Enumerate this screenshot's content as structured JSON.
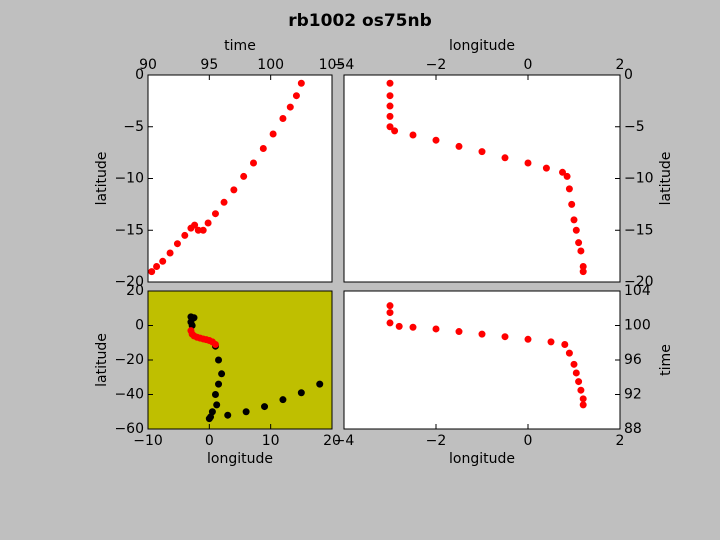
{
  "title": "rb1002 os75nb",
  "chart_data": [
    {
      "type": "scatter",
      "xlabel": "time",
      "ylabel": "latitude",
      "xaxis_position": "top",
      "yaxis_position": "left",
      "facecolor": "#ffffff",
      "xlim": [
        90,
        105
      ],
      "xticks": [
        90,
        95,
        100,
        105
      ],
      "ylim": [
        -20,
        0
      ],
      "yticks": [
        0,
        {
          "value": -5,
          "label": "−5"
        },
        {
          "value": -10,
          "label": "−10"
        },
        {
          "value": -15,
          "label": "−15"
        },
        {
          "value": -20,
          "label": "−20"
        }
      ],
      "series": [
        {
          "color": "#ff0000",
          "x": [
            90.3,
            90.7,
            91.2,
            91.8,
            92.4,
            93.0,
            93.5,
            93.8,
            94.1,
            94.5,
            94.9,
            95.5,
            96.2,
            97.0,
            97.8,
            98.6,
            99.4,
            100.2,
            101.0,
            101.6,
            102.1,
            102.5
          ],
          "values": [
            -19,
            -18.5,
            -18,
            -17.2,
            -16.3,
            -15.5,
            -14.8,
            -14.5,
            -15,
            -15,
            -14.3,
            -13.4,
            -12.3,
            -11.1,
            -9.8,
            -8.5,
            -7.1,
            -5.7,
            -4.2,
            -3.1,
            -2,
            -0.8
          ]
        }
      ]
    },
    {
      "type": "scatter",
      "xlabel": "longitude",
      "ylabel": "latitude",
      "xaxis_position": "top",
      "yaxis_position": "right",
      "facecolor": "#ffffff",
      "xlim": [
        -4,
        2
      ],
      "xticks": [
        {
          "value": -4,
          "label": "−4"
        },
        {
          "value": -2,
          "label": "−2"
        },
        0,
        2
      ],
      "ylim": [
        -20,
        0
      ],
      "yticks": [
        0,
        {
          "value": -5,
          "label": "−5"
        },
        {
          "value": -10,
          "label": "−10"
        },
        {
          "value": -15,
          "label": "−15"
        },
        {
          "value": -20,
          "label": "−20"
        }
      ],
      "series": [
        {
          "color": "#ff0000",
          "x": [
            -3,
            -3,
            -3,
            -3,
            -3,
            -2.9,
            -2.5,
            -2,
            -1.5,
            -1,
            -0.5,
            0,
            0.4,
            0.75,
            0.85,
            0.9,
            0.95,
            1.0,
            1.05,
            1.1,
            1.15,
            1.2,
            1.2
          ],
          "values": [
            -0.8,
            -2,
            -3,
            -4,
            -5,
            -5.4,
            -5.8,
            -6.3,
            -6.9,
            -7.4,
            -8,
            -8.5,
            -9,
            -9.4,
            -9.8,
            -11,
            -12.5,
            -14,
            -15,
            -16.2,
            -17,
            -18.5,
            -19
          ]
        }
      ]
    },
    {
      "type": "scatter",
      "xlabel": "longitude",
      "ylabel": "latitude",
      "xaxis_position": "bottom",
      "yaxis_position": "left",
      "facecolor": "#bfbf00",
      "xlim": [
        -10,
        20
      ],
      "xticks": [
        {
          "value": -10,
          "label": "−10"
        },
        0,
        10,
        20
      ],
      "ylim": [
        -60,
        20
      ],
      "yticks": [
        20,
        0,
        {
          "value": -20,
          "label": "−20"
        },
        {
          "value": -40,
          "label": "−40"
        },
        {
          "value": -60,
          "label": "−60"
        }
      ],
      "series": [
        {
          "color": "#000000",
          "x": [
            -3,
            -2.5,
            -3,
            -2.8,
            1,
            1.5,
            2,
            1.5,
            1,
            1.2,
            0.5,
            0.2,
            0,
            3,
            6,
            9,
            12,
            15,
            18
          ],
          "values": [
            5,
            4.5,
            2,
            0,
            -12,
            -20,
            -28,
            -34,
            -40,
            -46,
            -50,
            -53,
            -54,
            -52,
            -50,
            -47,
            -43,
            -39,
            -34
          ]
        },
        {
          "color": "#ff0000",
          "x": [
            -3,
            -2.8,
            -2.5,
            -2,
            -1.5,
            -1,
            -0.5,
            0,
            0.5,
            1
          ],
          "values": [
            -3,
            -5,
            -6,
            -6.8,
            -7.3,
            -7.8,
            -8.2,
            -8.7,
            -9.5,
            -11
          ]
        }
      ]
    },
    {
      "type": "scatter",
      "xlabel": "longitude",
      "ylabel": "time",
      "xaxis_position": "bottom",
      "yaxis_position": "right",
      "facecolor": "#ffffff",
      "xlim": [
        -4,
        2
      ],
      "xticks": [
        {
          "value": -4,
          "label": "−4"
        },
        {
          "value": -2,
          "label": "−2"
        },
        0,
        2
      ],
      "ylim": [
        88,
        104
      ],
      "yticks": [
        88,
        92,
        96,
        100,
        104
      ],
      "series": [
        {
          "color": "#ff0000",
          "x": [
            -3,
            -3,
            -3,
            -2.8,
            -2.5,
            -2,
            -1.5,
            -1,
            -0.5,
            0,
            0.5,
            0.8,
            0.9,
            1.0,
            1.05,
            1.1,
            1.15,
            1.2,
            1.2
          ],
          "values": [
            102.3,
            101.5,
            100.3,
            99.9,
            99.8,
            99.6,
            99.3,
            99,
            98.7,
            98.4,
            98.1,
            97.8,
            96.8,
            95.5,
            94.5,
            93.5,
            92.5,
            91.5,
            90.8
          ]
        }
      ]
    }
  ]
}
